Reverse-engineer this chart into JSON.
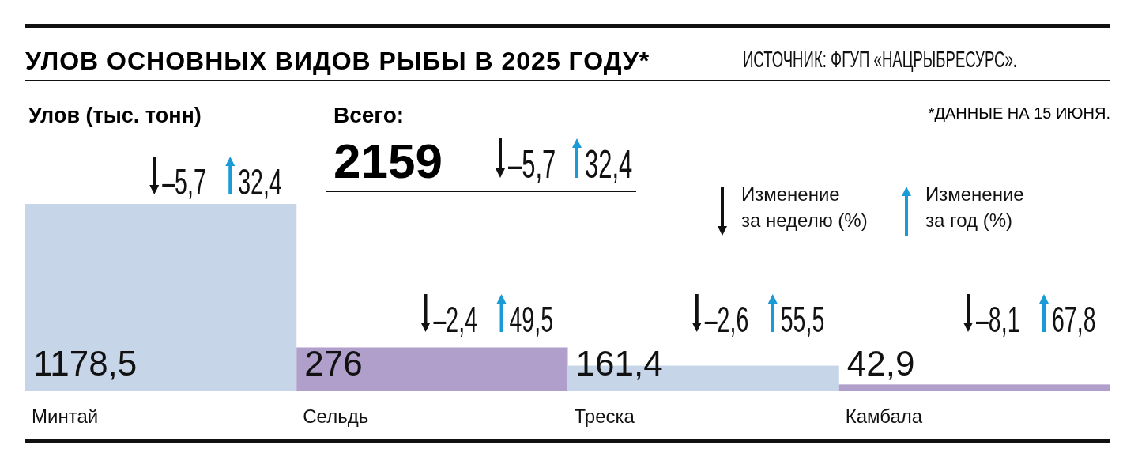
{
  "chart_data": {
    "type": "bar",
    "title": "УЛОВ ОСНОВНЫХ ВИДОВ РЫБЫ В 2025 ГОДУ*",
    "ylabel": "Улов (тыс. тонн)",
    "categories": [
      "Минтай",
      "Сельдь",
      "Треска",
      "Камбала"
    ],
    "values": [
      1178.5,
      276,
      161.4,
      42.9
    ],
    "value_labels": [
      "1178,5",
      "276",
      "161,4",
      "42,9"
    ],
    "colors": [
      "#c6d5e8",
      "#b09fcb",
      "#c6d5e8",
      "#b09fcb"
    ],
    "annotations": [
      "–5,7",
      "32,4",
      "–2,4",
      "49,5",
      "–2,6",
      "55,5",
      "–8,1",
      "67,8",
      "Всего:",
      "2159",
      "–5,7",
      "32,4",
      "Изменение за неделю (%)",
      "Изменение за год (%)",
      "ИСТОЧНИК: ФГУП «НАЦРЫБРЕСУРС».",
      "*ДАННЫЕ НА 15 ИЮНЯ."
    ]
  }
}
